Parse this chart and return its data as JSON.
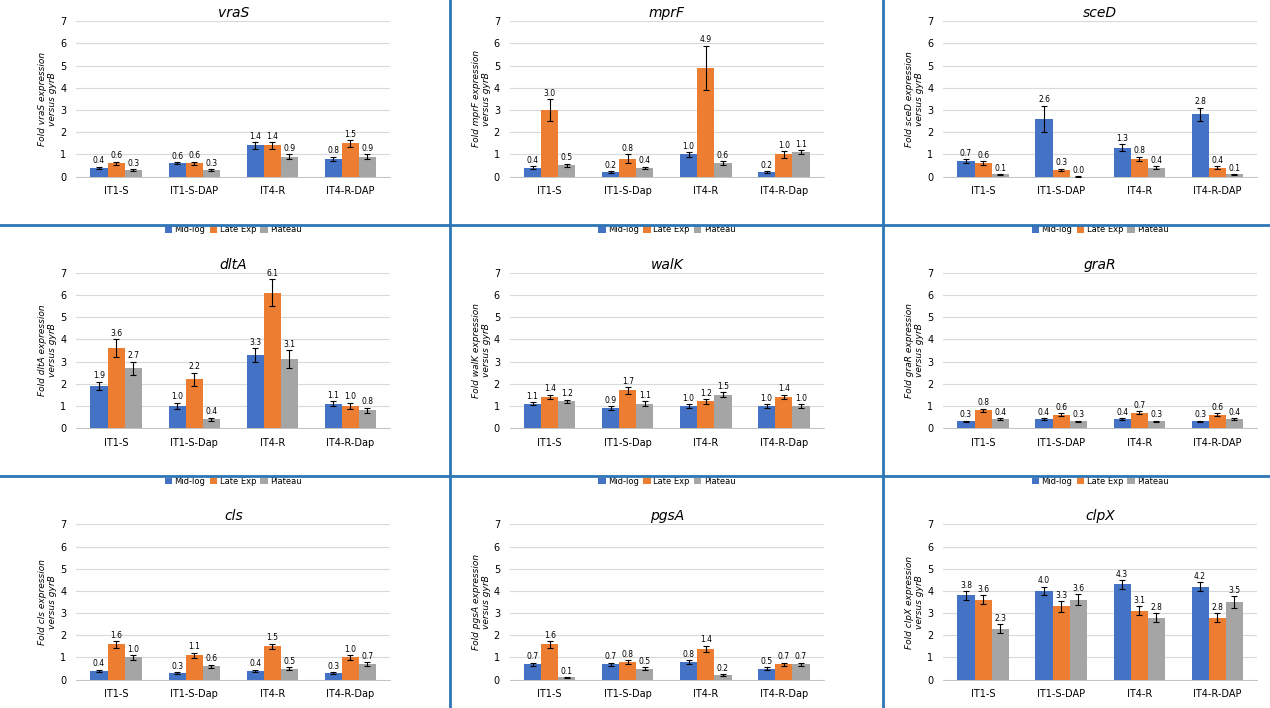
{
  "subplots": [
    {
      "title": "vraS",
      "gene": "vraS",
      "ylabel_template": "Fold {gene} expression\nversus gyrB",
      "groups": [
        "IT1-S",
        "IT1-S-DAP",
        "IT4-R",
        "IT4-R-DAP"
      ],
      "mid_log": [
        0.4,
        0.6,
        1.4,
        0.8
      ],
      "late_exp": [
        0.6,
        0.6,
        1.4,
        1.5
      ],
      "plateau": [
        0.3,
        0.3,
        0.9,
        0.9
      ],
      "mid_log_err": [
        0.05,
        0.05,
        0.15,
        0.1
      ],
      "late_exp_err": [
        0.07,
        0.07,
        0.15,
        0.15
      ],
      "plateau_err": [
        0.04,
        0.04,
        0.1,
        0.1
      ],
      "ylim": [
        0,
        7
      ]
    },
    {
      "title": "mprF",
      "gene": "mprF",
      "ylabel_template": "Fold {gene} expression\nversus gyrB",
      "groups": [
        "IT1-S",
        "IT1-S-Dap",
        "IT4-R",
        "IT4-R-Dap"
      ],
      "mid_log": [
        0.4,
        0.2,
        1.0,
        0.2
      ],
      "late_exp": [
        3.0,
        0.8,
        4.9,
        1.0
      ],
      "plateau": [
        0.5,
        0.4,
        0.6,
        1.1
      ],
      "mid_log_err": [
        0.08,
        0.05,
        0.1,
        0.04
      ],
      "late_exp_err": [
        0.5,
        0.2,
        1.0,
        0.15
      ],
      "plateau_err": [
        0.08,
        0.05,
        0.08,
        0.1
      ],
      "ylim": [
        0,
        7
      ]
    },
    {
      "title": "sceD",
      "gene": "sceD",
      "ylabel_template": "Fold {gene} expression\nversus gyrB",
      "groups": [
        "IT1-S",
        "IT1-S-DAP",
        "IT4-R",
        "IT4-R-DAP"
      ],
      "mid_log": [
        0.7,
        2.6,
        1.3,
        2.8
      ],
      "late_exp": [
        0.6,
        0.3,
        0.8,
        0.4
      ],
      "plateau": [
        0.1,
        0.0,
        0.4,
        0.1
      ],
      "mid_log_err": [
        0.08,
        0.6,
        0.15,
        0.3
      ],
      "late_exp_err": [
        0.08,
        0.06,
        0.1,
        0.06
      ],
      "plateau_err": [
        0.02,
        0.01,
        0.08,
        0.02
      ],
      "ylim": [
        0,
        7
      ]
    },
    {
      "title": "dltA",
      "gene": "dltA",
      "ylabel_template": "Fold {gene} expression\nversus gyrB",
      "groups": [
        "IT1-S",
        "IT1-S-Dap",
        "IT4-R",
        "IT4-R-Dap"
      ],
      "mid_log": [
        1.9,
        1.0,
        3.3,
        1.1
      ],
      "late_exp": [
        3.6,
        2.2,
        6.1,
        1.0
      ],
      "plateau": [
        2.7,
        0.4,
        3.1,
        0.8
      ],
      "mid_log_err": [
        0.2,
        0.15,
        0.3,
        0.12
      ],
      "late_exp_err": [
        0.4,
        0.3,
        0.6,
        0.15
      ],
      "plateau_err": [
        0.3,
        0.07,
        0.4,
        0.12
      ],
      "ylim": [
        0,
        7
      ]
    },
    {
      "title": "walK",
      "gene": "walK",
      "ylabel_template": "Fold {gene} expression\nversus gyrB",
      "groups": [
        "IT1-S",
        "IT1-S-Dap",
        "IT4-R",
        "IT4-R-Dap"
      ],
      "mid_log": [
        1.1,
        0.9,
        1.0,
        1.0
      ],
      "late_exp": [
        1.4,
        1.7,
        1.2,
        1.4
      ],
      "plateau": [
        1.2,
        1.1,
        1.5,
        1.0
      ],
      "mid_log_err": [
        0.08,
        0.08,
        0.08,
        0.08
      ],
      "late_exp_err": [
        0.1,
        0.15,
        0.1,
        0.1
      ],
      "plateau_err": [
        0.08,
        0.1,
        0.12,
        0.08
      ],
      "ylim": [
        0,
        7
      ]
    },
    {
      "title": "graR",
      "gene": "graR",
      "ylabel_template": "Fold {gene} expression\nversus gyrB",
      "groups": [
        "IT1-S",
        "IT1-S-DAP",
        "IT4-R",
        "IT4-R-DAP"
      ],
      "mid_log": [
        0.3,
        0.4,
        0.4,
        0.3
      ],
      "late_exp": [
        0.8,
        0.6,
        0.7,
        0.6
      ],
      "plateau": [
        0.4,
        0.3,
        0.3,
        0.4
      ],
      "mid_log_err": [
        0.04,
        0.05,
        0.05,
        0.04
      ],
      "late_exp_err": [
        0.08,
        0.07,
        0.07,
        0.07
      ],
      "plateau_err": [
        0.05,
        0.04,
        0.04,
        0.05
      ],
      "ylim": [
        0,
        7
      ]
    },
    {
      "title": "cls",
      "gene": "cls",
      "ylabel_template": "Fold {gene} expression\nversus gyrB",
      "groups": [
        "IT1-S",
        "IT1-S-Dap",
        "IT4-R",
        "IT4-R-Dap"
      ],
      "mid_log": [
        0.4,
        0.3,
        0.4,
        0.3
      ],
      "late_exp": [
        1.6,
        1.1,
        1.5,
        1.0
      ],
      "plateau": [
        1.0,
        0.6,
        0.5,
        0.7
      ],
      "mid_log_err": [
        0.05,
        0.04,
        0.05,
        0.04
      ],
      "late_exp_err": [
        0.15,
        0.12,
        0.12,
        0.1
      ],
      "plateau_err": [
        0.1,
        0.07,
        0.06,
        0.08
      ],
      "ylim": [
        0,
        7
      ]
    },
    {
      "title": "pgsA",
      "gene": "pgsA",
      "ylabel_template": "Fold {gene} expression\nversus gyrB",
      "groups": [
        "IT1-S",
        "IT1-S-Dap",
        "IT4-R",
        "IT4-R-Dap"
      ],
      "mid_log": [
        0.7,
        0.7,
        0.8,
        0.5
      ],
      "late_exp": [
        1.6,
        0.8,
        1.4,
        0.7
      ],
      "plateau": [
        0.1,
        0.5,
        0.2,
        0.7
      ],
      "mid_log_err": [
        0.07,
        0.07,
        0.08,
        0.05
      ],
      "late_exp_err": [
        0.15,
        0.08,
        0.13,
        0.07
      ],
      "plateau_err": [
        0.02,
        0.06,
        0.04,
        0.07
      ],
      "ylim": [
        0,
        7
      ]
    },
    {
      "title": "clpX",
      "gene": "clpX",
      "ylabel_template": "Fold {gene} expression\nversus gyrB",
      "groups": [
        "IT1-S",
        "IT1-S-DAP",
        "IT4-R",
        "IT4-R-DAP"
      ],
      "mid_log": [
        3.8,
        4.0,
        4.3,
        4.2
      ],
      "late_exp": [
        3.6,
        3.3,
        3.1,
        2.8
      ],
      "plateau": [
        2.3,
        3.6,
        2.8,
        3.5
      ],
      "mid_log_err": [
        0.2,
        0.2,
        0.2,
        0.2
      ],
      "late_exp_err": [
        0.2,
        0.25,
        0.2,
        0.2
      ],
      "plateau_err": [
        0.2,
        0.25,
        0.2,
        0.25
      ],
      "ylim": [
        0,
        7
      ]
    }
  ],
  "colors": {
    "mid_log": "#4472C4",
    "late_exp": "#ED7D31",
    "plateau": "#A5A5A5"
  },
  "bar_width": 0.22,
  "grid_color": "#D9D9D9",
  "border_color": "#2E75B6",
  "background_color": "#FFFFFF"
}
